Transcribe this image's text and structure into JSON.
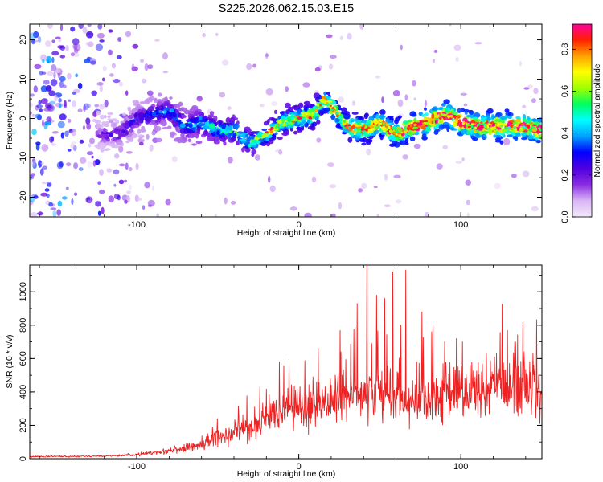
{
  "chart_data": [
    {
      "type": "heatmap",
      "title": "S225.2026.062.15.03.E15",
      "xlabel": "Height of straight line (km)",
      "ylabel": "Frequency (Hz)",
      "xlim": [
        -166,
        150
      ],
      "ylim": [
        -25,
        24
      ],
      "xticks": [
        -100,
        0,
        100
      ],
      "yticks": [
        -20,
        -10,
        0,
        10,
        20
      ],
      "colorbar": {
        "label": "Normalized spectral amplitude",
        "range": [
          0,
          0.92
        ],
        "ticks": [
          "0.0",
          "0.2",
          "0.4",
          "0.6",
          "0.8"
        ],
        "tick_values": [
          0,
          0.2,
          0.4,
          0.6,
          0.8
        ],
        "colormap": [
          "#f2e8fa",
          "#d8b4f4",
          "#8a2be2",
          "#5000e0",
          "#0000ff",
          "#00a0ff",
          "#00ffff",
          "#00ff60",
          "#a0ff00",
          "#ffff00",
          "#ffa000",
          "#ff2000",
          "#ff00a0"
        ]
      },
      "ridge": {
        "x": [
          -120,
          -110,
          -100,
          -90,
          -80,
          -70,
          -60,
          -50,
          -40,
          -30,
          -20,
          -10,
          0,
          10,
          15,
          20,
          30,
          40,
          50,
          60,
          70,
          80,
          90,
          100,
          110,
          120,
          130,
          140,
          148
        ],
        "freq": [
          -4,
          -4,
          0,
          1,
          2,
          -2,
          -1,
          -3,
          -3,
          -6,
          -4,
          -1,
          0,
          1,
          5,
          3,
          -2,
          -3,
          -1,
          -4,
          -2,
          -1,
          1,
          -1,
          -2,
          -2,
          -2,
          -2,
          -3
        ]
      }
    },
    {
      "type": "line",
      "xlabel": "Height of straight line (km)",
      "ylabel": "SNR (10 * v/v)",
      "xlim": [
        -166,
        150
      ],
      "ylim": [
        0,
        1160
      ],
      "xticks": [
        -100,
        0,
        100
      ],
      "yticks": [
        0,
        200,
        400,
        600,
        800,
        1000
      ],
      "color": "#ee2222",
      "envelope": {
        "x": [
          -166,
          -120,
          -100,
          -80,
          -60,
          -45,
          -30,
          -20,
          -10,
          0,
          10,
          20,
          30,
          40,
          50,
          60,
          70,
          80,
          90,
          100,
          110,
          120,
          130,
          140,
          150
        ],
        "y": [
          15,
          20,
          30,
          60,
          100,
          160,
          210,
          250,
          300,
          320,
          340,
          380,
          420,
          420,
          420,
          400,
          380,
          390,
          420,
          440,
          460,
          480,
          470,
          470,
          470
        ]
      },
      "peaks": [
        {
          "x": 42,
          "y": 1160
        },
        {
          "x": 58,
          "y": 1120
        },
        {
          "x": 66,
          "y": 1130
        },
        {
          "x": 36,
          "y": 930
        },
        {
          "x": 48,
          "y": 980
        },
        {
          "x": 53,
          "y": 960
        },
        {
          "x": 12,
          "y": 660
        },
        {
          "x": 26,
          "y": 640
        },
        {
          "x": -12,
          "y": 580
        },
        {
          "x": -24,
          "y": 430
        },
        {
          "x": 76,
          "y": 880
        },
        {
          "x": 90,
          "y": 700
        },
        {
          "x": 101,
          "y": 700
        },
        {
          "x": 63,
          "y": 800
        },
        {
          "x": 82,
          "y": 760
        }
      ]
    }
  ]
}
